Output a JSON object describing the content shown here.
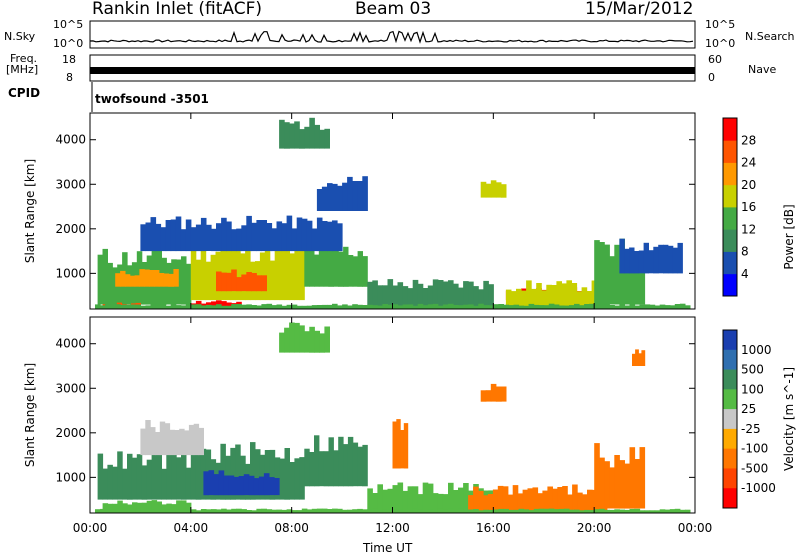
{
  "header": {
    "station": "Rankin Inlet (fitACF)",
    "beam": "Beam 03",
    "date": "15/Mar/2012"
  },
  "strips": {
    "nsky_label": "N.Sky",
    "nsky_ticks": [
      "10^5",
      "10^0"
    ],
    "nsearch_label": "N.Search",
    "nsearch_ticks": [
      "10^5",
      "10^0"
    ],
    "freq_label_1": "Freq.",
    "freq_label_2": "[MHz]",
    "freq_ticks": [
      "18",
      "8"
    ],
    "nave_label": "Nave",
    "nave_ticks": [
      "60",
      "0"
    ],
    "cpid_label": "CPID",
    "cpid_value": "twofsound -3501"
  },
  "chart_data": [
    {
      "type": "heatmap",
      "title": "",
      "xlabel": "Time UT",
      "ylabel": "Slant Range [km]",
      "x_ticks": [
        "00:00",
        "04:00",
        "08:00",
        "12:00",
        "16:00",
        "20:00",
        "00:00"
      ],
      "y_ticks": [
        "1000",
        "2000",
        "3000",
        "4000"
      ],
      "ylim": [
        200,
        4600
      ],
      "colorbar_label": "Power [dB]",
      "colorbar_ticks": [
        "4",
        "8",
        "12",
        "16",
        "20",
        "24",
        "28"
      ],
      "colorbar_colors": [
        "#0000ff",
        "#1a4fb0",
        "#3b8c5a",
        "#44aa44",
        "#c8d000",
        "#ff9900",
        "#ff5500",
        "#ff0000"
      ],
      "regions": [
        {
          "t0": 0.3,
          "t1": 4.0,
          "r0": 300,
          "r1": 1600,
          "c": 3
        },
        {
          "t0": 4.0,
          "t1": 8.5,
          "r0": 400,
          "r1": 1800,
          "c": 4
        },
        {
          "t0": 8.5,
          "t1": 11.0,
          "r0": 700,
          "r1": 1700,
          "c": 3
        },
        {
          "t0": 2.0,
          "t1": 10.0,
          "r0": 1500,
          "r1": 2300,
          "c": 1
        },
        {
          "t0": 5.0,
          "t1": 7.0,
          "r0": 600,
          "r1": 1100,
          "c": 6
        },
        {
          "t0": 1.0,
          "t1": 3.5,
          "r0": 700,
          "r1": 1100,
          "c": 5
        },
        {
          "t0": 4.0,
          "t1": 6.0,
          "r0": 200,
          "r1": 400,
          "c": 7
        },
        {
          "t0": 0.5,
          "t1": 2.0,
          "r0": 200,
          "r1": 350,
          "c": 6
        },
        {
          "t0": 11.0,
          "t1": 16.0,
          "r0": 200,
          "r1": 900,
          "c": 2
        },
        {
          "t0": 16.5,
          "t1": 19.5,
          "r0": 400,
          "r1": 700,
          "c": 7
        },
        {
          "t0": 16.5,
          "t1": 20.5,
          "r0": 200,
          "r1": 850,
          "c": 4
        },
        {
          "t0": 20.0,
          "t1": 22.0,
          "r0": 300,
          "r1": 1800,
          "c": 3
        },
        {
          "t0": 21.0,
          "t1": 23.5,
          "r0": 1000,
          "r1": 1800,
          "c": 1
        },
        {
          "t0": 15.5,
          "t1": 16.5,
          "r0": 2700,
          "r1": 3100,
          "c": 4
        },
        {
          "t0": 7.5,
          "t1": 9.5,
          "r0": 3800,
          "r1": 4500,
          "c": 2
        },
        {
          "t0": 9.0,
          "t1": 11.0,
          "r0": 2400,
          "r1": 3200,
          "c": 1
        },
        {
          "t0": 0.2,
          "t1": 23.8,
          "r0": 200,
          "r1": 320,
          "c": 3
        }
      ]
    },
    {
      "type": "heatmap",
      "title": "",
      "xlabel": "Time UT",
      "ylabel": "Slant Range [km]",
      "x_ticks": [
        "00:00",
        "04:00",
        "08:00",
        "12:00",
        "16:00",
        "20:00",
        "00:00"
      ],
      "y_ticks": [
        "1000",
        "2000",
        "3000",
        "4000"
      ],
      "ylim": [
        200,
        4600
      ],
      "colorbar_label": "Velocity [m s^-1]",
      "colorbar_ticks": [
        "1000",
        "500",
        "100",
        "25",
        "-25",
        "-100",
        "-500",
        "-1000"
      ],
      "colorbar_colors": [
        "#1a3fb0",
        "#2f6fb0",
        "#3b8c5a",
        "#55bb44",
        "#c8c8c8",
        "#ffaa00",
        "#ff7700",
        "#ff4400",
        "#ff0000"
      ],
      "regions": [
        {
          "t0": 0.3,
          "t1": 4.0,
          "r0": 500,
          "r1": 1600,
          "c": 2
        },
        {
          "t0": 4.0,
          "t1": 8.5,
          "r0": 500,
          "r1": 1800,
          "c": 2
        },
        {
          "t0": 8.5,
          "t1": 11.0,
          "r0": 800,
          "r1": 2000,
          "c": 2
        },
        {
          "t0": 4.5,
          "t1": 7.5,
          "r0": 600,
          "r1": 1200,
          "c": 0
        },
        {
          "t0": 2.0,
          "t1": 4.5,
          "r0": 1500,
          "r1": 2300,
          "c": 4
        },
        {
          "t0": 0.5,
          "t1": 4.0,
          "r0": 200,
          "r1": 500,
          "c": 3
        },
        {
          "t0": 11.0,
          "t1": 16.0,
          "r0": 200,
          "r1": 900,
          "c": 3
        },
        {
          "t0": 15.0,
          "t1": 20.5,
          "r0": 200,
          "r1": 850,
          "c": 6
        },
        {
          "t0": 20.0,
          "t1": 22.0,
          "r0": 300,
          "r1": 1800,
          "c": 6
        },
        {
          "t0": 12.0,
          "t1": 12.6,
          "r0": 1200,
          "r1": 2400,
          "c": 6
        },
        {
          "t0": 15.5,
          "t1": 16.5,
          "r0": 2700,
          "r1": 3100,
          "c": 6
        },
        {
          "t0": 21.5,
          "t1": 22.0,
          "r0": 3500,
          "r1": 3900,
          "c": 6
        },
        {
          "t0": 7.5,
          "t1": 9.5,
          "r0": 3800,
          "r1": 4500,
          "c": 3
        },
        {
          "t0": 0.2,
          "t1": 23.8,
          "r0": 200,
          "r1": 300,
          "c": 3
        }
      ]
    }
  ]
}
